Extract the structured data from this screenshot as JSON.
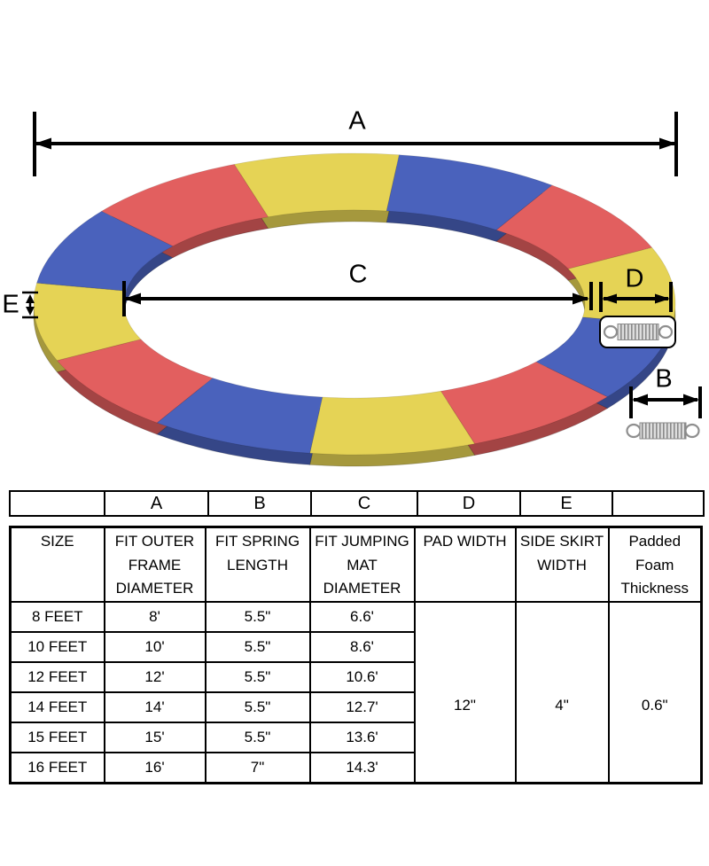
{
  "diagram": {
    "labels": {
      "outer_diameter": "A",
      "spring_length": "B",
      "inner_diameter": "C",
      "pad_width": "D",
      "side_skirt": "E"
    },
    "colors": {
      "blue": "#4a62bc",
      "red": "#e25f5f",
      "yellow": "#e5d355"
    },
    "segments": [
      "#4a62bc",
      "#e25f5f",
      "#e5d355",
      "#4a62bc",
      "#e25f5f",
      "#e5d355",
      "#4a62bc",
      "#e25f5f",
      "#e5d355",
      "#4a62bc",
      "#e25f5f",
      "#e5d355"
    ]
  },
  "spec_table": {
    "letter_row": [
      "",
      "A",
      "B",
      "C",
      "D",
      "E",
      ""
    ],
    "header_lines": [
      [
        "SIZE"
      ],
      [
        "FIT OUTER",
        "FRAME",
        "DIAMETER"
      ],
      [
        "FIT SPRING",
        "LENGTH"
      ],
      [
        "FIT JUMPING",
        "MAT",
        "DIAMETER"
      ],
      [
        "PAD WIDTH"
      ],
      [
        "SIDE SKIRT",
        "WIDTH"
      ],
      [
        "Padded",
        "Foam",
        "Thickness"
      ]
    ],
    "rows": [
      [
        "8 FEET",
        "8'",
        "5.5\"",
        "6.6'"
      ],
      [
        "10 FEET",
        "10'",
        "5.5\"",
        "8.6'"
      ],
      [
        "12 FEET",
        "12'",
        "5.5\"",
        "10.6'"
      ],
      [
        "14 FEET",
        "14'",
        "5.5\"",
        "12.7'"
      ],
      [
        "15 FEET",
        "15'",
        "5.5\"",
        "13.6'"
      ],
      [
        "16 FEET",
        "16'",
        "7\"",
        "14.3'"
      ]
    ],
    "merged_values": {
      "pad_width": "12\"",
      "side_skirt_width": "4\"",
      "foam_thickness": "0.6\""
    }
  }
}
